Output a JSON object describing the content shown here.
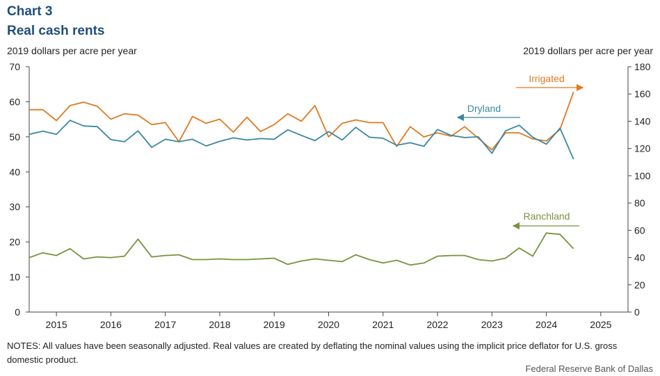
{
  "header": {
    "chart_label": "Chart 3",
    "title": "Real cash rents"
  },
  "notes": "NOTES: All values have been seasonally adjusted. Real values are created by deflating the nominal values using the implicit price deflator for U.S. gross domestic product.",
  "source": "Federal Reserve Bank of Dallas",
  "colors": {
    "irrigated": "#e07a1f",
    "dryland": "#3a87a0",
    "ranchland": "#77923c",
    "axis": "#444444"
  },
  "chart_data": {
    "type": "line",
    "title": "Real cash rents",
    "xlabel": "",
    "ylabel": "2019 dollars per acre per year",
    "ylabel_right": "2019 dollars per acre per year",
    "x_tick_labels": [
      "2015",
      "2016",
      "2017",
      "2018",
      "2019",
      "2020",
      "2021",
      "2022",
      "2023",
      "2024",
      "2025"
    ],
    "y_left": {
      "min": 0,
      "max": 70,
      "ticks": [
        0,
        10,
        20,
        30,
        40,
        50,
        60,
        70
      ]
    },
    "y_right": {
      "min": 0,
      "max": 180,
      "ticks": [
        0,
        20,
        40,
        60,
        80,
        100,
        120,
        140,
        160,
        180
      ]
    },
    "x_start": 2014.5,
    "x_end": 2025.5,
    "series": [
      {
        "name": "Irrigated",
        "axis": "right",
        "color": "#e07a1f",
        "label_position": "top-right",
        "start": 2014.5,
        "step": 0.25,
        "values": [
          148.5,
          148.5,
          140.5,
          151.5,
          154.0,
          151.0,
          141.5,
          145.5,
          144.5,
          137.5,
          139.0,
          125.0,
          143.5,
          138.5,
          141.5,
          132.0,
          143.0,
          132.5,
          137.5,
          145.5,
          140.0,
          151.5,
          128.5,
          138.5,
          141.0,
          139.0,
          139.0,
          121.5,
          136.0,
          128.5,
          131.5,
          129.0,
          136.0,
          127.5,
          119.0,
          131.5,
          131.5,
          127.0,
          125.5,
          134.0,
          161.5
        ]
      },
      {
        "name": "Dryland",
        "axis": "left",
        "color": "#3a87a0",
        "label_position": "upper-middle",
        "start": 2014.5,
        "step": 0.25,
        "values": [
          50.7,
          51.6,
          50.7,
          54.7,
          53.1,
          52.9,
          49.2,
          48.6,
          51.7,
          47.0,
          49.3,
          48.6,
          49.3,
          47.4,
          48.7,
          49.7,
          49.1,
          49.5,
          49.3,
          52.0,
          50.4,
          48.9,
          51.5,
          49.1,
          52.7,
          49.9,
          49.6,
          47.6,
          48.3,
          47.3,
          52.1,
          50.4,
          49.8,
          50.0,
          45.3,
          51.7,
          53.3,
          49.9,
          47.9,
          52.5,
          43.6
        ]
      },
      {
        "name": "Ranchland",
        "axis": "right",
        "color": "#77923c",
        "label_position": "lower-right",
        "start": 2014.5,
        "step": 0.25,
        "values": [
          40.0,
          43.5,
          41.5,
          46.5,
          39.0,
          40.5,
          40.0,
          41.0,
          53.5,
          40.5,
          41.5,
          42.0,
          38.5,
          38.5,
          39.0,
          38.5,
          38.5,
          39.0,
          39.5,
          35.0,
          37.5,
          39.0,
          38.0,
          37.0,
          42.0,
          38.5,
          36.0,
          38.0,
          34.5,
          36.0,
          41.0,
          41.5,
          41.5,
          38.5,
          37.5,
          39.5,
          47.0,
          41.0,
          58.0,
          57.0,
          46.5
        ]
      }
    ]
  }
}
